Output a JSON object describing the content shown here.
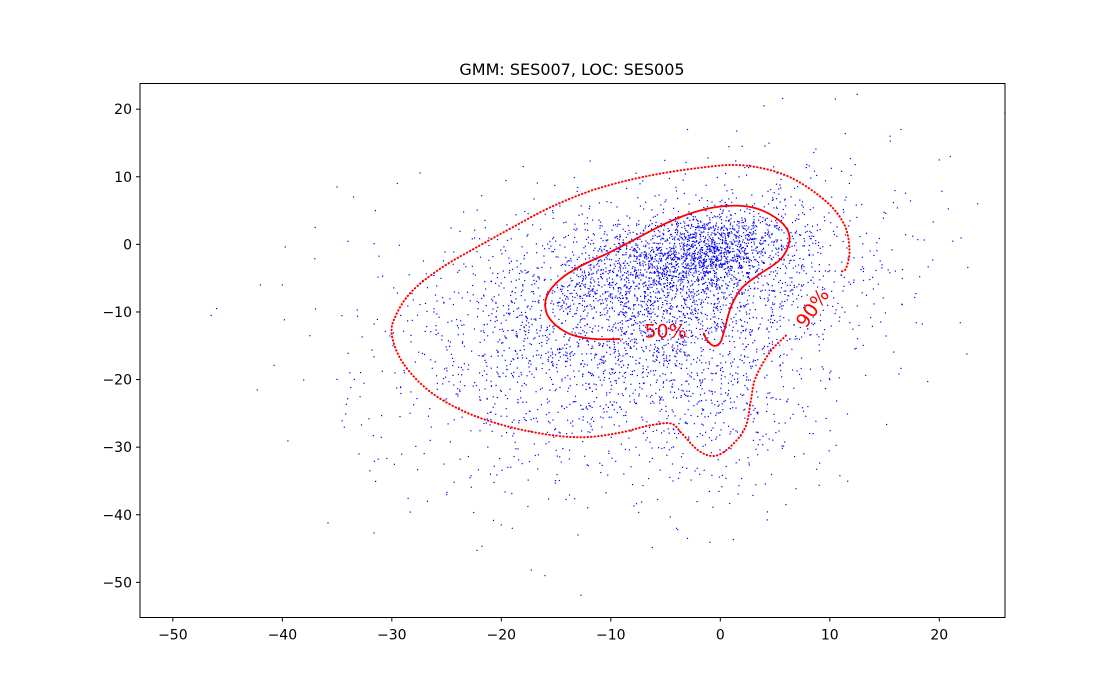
{
  "chart_data": {
    "type": "scatter",
    "title": "GMM: SES007, LOC: SES005",
    "xlabel": "",
    "ylabel": "",
    "xlim": [
      -53,
      26
    ],
    "ylim": [
      -55.2,
      23.8
    ],
    "xticks": [
      -50,
      -40,
      -30,
      -20,
      -10,
      0,
      10,
      20
    ],
    "yticks": [
      -50,
      -40,
      -30,
      -20,
      -10,
      0,
      10,
      20
    ],
    "xtick_labels": [
      "−50",
      "−40",
      "−30",
      "−20",
      "−10",
      "0",
      "10",
      "20"
    ],
    "ytick_labels": [
      "−50",
      "−40",
      "−30",
      "−20",
      "−10",
      "0",
      "10",
      "20"
    ],
    "grid": false,
    "legend": "none",
    "scatter": {
      "color": "#0000ff",
      "approx_point_count": 5000,
      "center": [
        -2,
        -3
      ],
      "outliers": [
        [
          -46.5,
          -10.5
        ],
        [
          -46,
          -9.5
        ],
        [
          -42,
          -6
        ],
        [
          -40,
          -6
        ],
        [
          -37,
          2.5
        ],
        [
          -35,
          8.5
        ],
        [
          -33.5,
          7
        ],
        [
          -31.5,
          5
        ],
        [
          -29.5,
          9
        ],
        [
          -33,
          -31
        ],
        [
          -32,
          -33.5
        ],
        [
          -26.5,
          -29
        ],
        [
          -25,
          -37
        ],
        [
          -21,
          -34
        ],
        [
          -20,
          -41.5
        ],
        [
          -19,
          -42
        ],
        [
          -16,
          -49
        ],
        [
          -13,
          -43
        ],
        [
          -4,
          -42
        ],
        [
          -3,
          -43.5
        ],
        [
          10.5,
          21.5
        ],
        [
          12.5,
          22.2
        ],
        [
          4,
          20.5
        ],
        [
          -3,
          17
        ],
        [
          2,
          14.5
        ],
        [
          15.5,
          16
        ],
        [
          16.5,
          17
        ],
        [
          21,
          13
        ],
        [
          20,
          12.5
        ],
        [
          23.5,
          6
        ],
        [
          26,
          19.5
        ],
        [
          10,
          -19
        ],
        [
          10,
          -20
        ],
        [
          8,
          -24
        ],
        [
          6,
          -38.5
        ]
      ]
    },
    "contours": [
      {
        "level_label": "50%",
        "style": "solid",
        "color": "#ff0000",
        "points": [
          [
            -9.2,
            -14
          ],
          [
            -11.5,
            -14
          ],
          [
            -13.5,
            -13.4
          ],
          [
            -15,
            -12
          ],
          [
            -15.9,
            -10
          ],
          [
            -15.8,
            -7.5
          ],
          [
            -14.5,
            -5
          ],
          [
            -12.5,
            -3
          ],
          [
            -10,
            -1.1
          ],
          [
            -7.5,
            1
          ],
          [
            -5,
            3.1
          ],
          [
            -2.5,
            4.7
          ],
          [
            0,
            5.6
          ],
          [
            2.5,
            5.6
          ],
          [
            4.5,
            4.5
          ],
          [
            6,
            2.5
          ],
          [
            6.3,
            0.4
          ],
          [
            5.5,
            -2.2
          ],
          [
            3.5,
            -4.5
          ],
          [
            2,
            -6.4
          ],
          [
            1,
            -9.1
          ],
          [
            0.4,
            -12.5
          ],
          [
            0,
            -14.5
          ],
          [
            -0.6,
            -15
          ],
          [
            -1.2,
            -14.2
          ],
          [
            -1.5,
            -13.2
          ]
        ],
        "label_pos": [
          -5,
          -13
        ]
      },
      {
        "level_label": "90%",
        "style": "dotted",
        "color": "#ff0000",
        "points": [
          [
            6,
            -13.5
          ],
          [
            4.5,
            -16
          ],
          [
            3.2,
            -19.8
          ],
          [
            2.8,
            -23
          ],
          [
            2.3,
            -27
          ],
          [
            1,
            -29.8
          ],
          [
            -0.5,
            -31.3
          ],
          [
            -2,
            -30.5
          ],
          [
            -3.5,
            -28
          ],
          [
            -4.5,
            -26.5
          ],
          [
            -6.5,
            -26.8
          ],
          [
            -9,
            -27.8
          ],
          [
            -12,
            -28.5
          ],
          [
            -15,
            -28.3
          ],
          [
            -19,
            -27.1
          ],
          [
            -23,
            -25
          ],
          [
            -26.5,
            -21.8
          ],
          [
            -29,
            -17.5
          ],
          [
            -30,
            -13.3
          ],
          [
            -29.6,
            -10.4
          ],
          [
            -28.2,
            -7
          ],
          [
            -25.5,
            -3.5
          ],
          [
            -22,
            -0.2
          ],
          [
            -19,
            2.5
          ],
          [
            -15.5,
            5.5
          ],
          [
            -11.5,
            8.1
          ],
          [
            -7,
            10
          ],
          [
            -2,
            11.3
          ],
          [
            2,
            11.7
          ],
          [
            6,
            10.2
          ],
          [
            9.5,
            6.6
          ],
          [
            11.3,
            3
          ],
          [
            11.8,
            -0.8
          ],
          [
            11.5,
            -3.5
          ],
          [
            11.1,
            -4
          ]
        ],
        "label_pos": [
          8.5,
          -9.5
        ],
        "label_rotation": -55
      }
    ]
  }
}
